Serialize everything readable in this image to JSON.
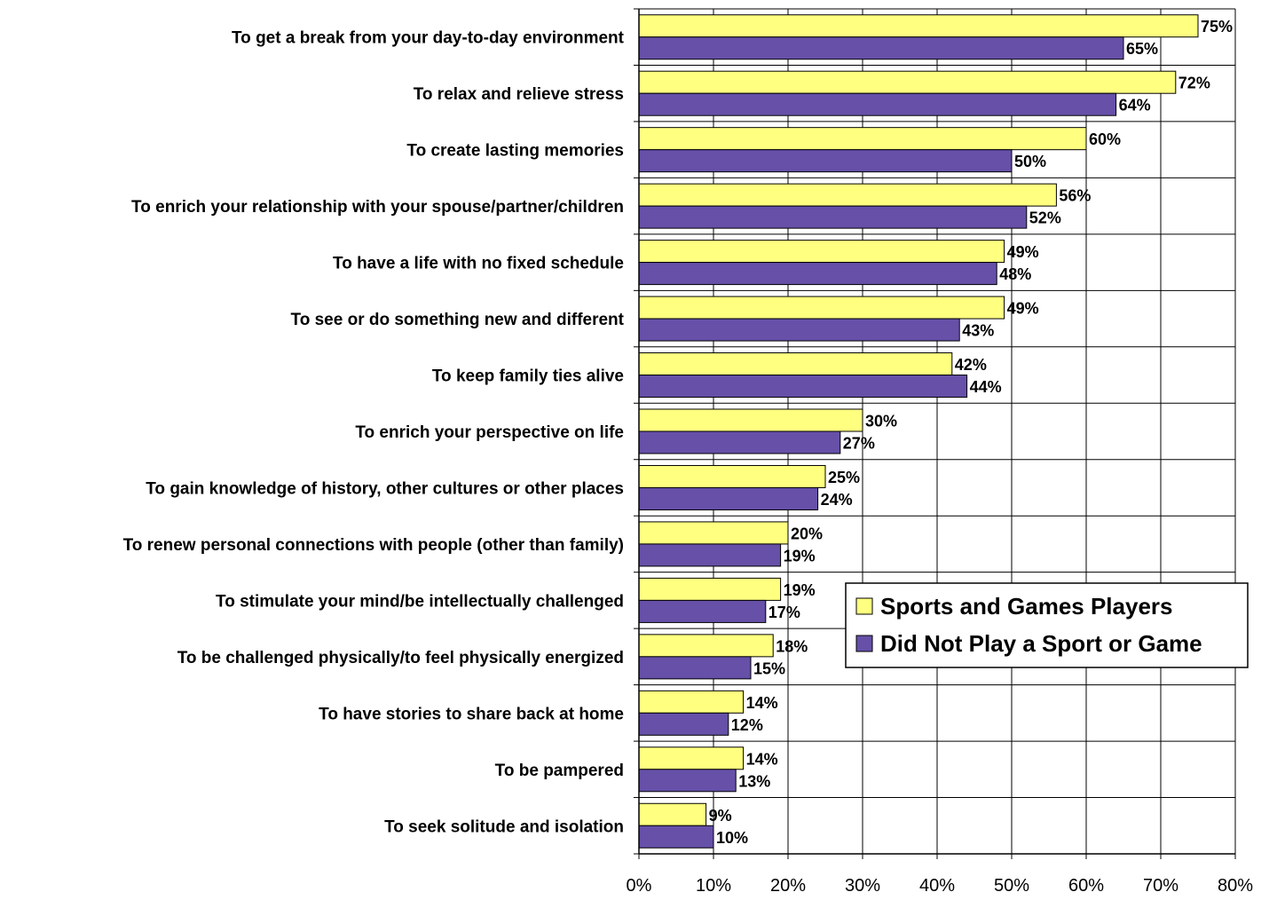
{
  "chart_data": {
    "type": "bar",
    "orientation": "horizontal",
    "title": "",
    "xlabel": "",
    "ylabel": "",
    "xlim": [
      0,
      80
    ],
    "x_tick_step": 10,
    "x_tick_labels": [
      "0%",
      "10%",
      "20%",
      "30%",
      "40%",
      "50%",
      "60%",
      "70%",
      "80%"
    ],
    "grid": true,
    "legend_placement": "center-right",
    "categories": [
      "To get a break from your day-to-day environment",
      "To relax and relieve stress",
      "To create lasting memories",
      "To enrich your relationship with your spouse/partner/children",
      "To have a life with no fixed schedule",
      "To see or do something new and different",
      "To keep family ties alive",
      "To enrich your perspective on life",
      "To gain knowledge of history, other cultures or other places",
      "To renew personal connections with people (other than family)",
      "To stimulate your mind/be intellectually challenged",
      "To be challenged physically/to feel physically energized",
      "To have stories to share back at home",
      "To be pampered",
      "To seek solitude and isolation"
    ],
    "series": [
      {
        "name": "Sports and Games Players",
        "color": "#FFFF80",
        "values": [
          75,
          72,
          60,
          56,
          49,
          49,
          42,
          30,
          25,
          20,
          19,
          18,
          14,
          14,
          9
        ],
        "labels": [
          "75%",
          "72%",
          "60%",
          "56%",
          "49%",
          "49%",
          "42%",
          "30%",
          "25%",
          "20%",
          "19%",
          "18%",
          "14%",
          "14%",
          "9%"
        ]
      },
      {
        "name": "Did Not Play a Sport or Game",
        "color": "#6650A8",
        "values": [
          65,
          64,
          50,
          52,
          48,
          43,
          44,
          27,
          24,
          19,
          17,
          15,
          12,
          13,
          10
        ],
        "labels": [
          "65%",
          "64%",
          "50%",
          "52%",
          "48%",
          "43%",
          "44%",
          "27%",
          "24%",
          "19%",
          "17%",
          "15%",
          "12%",
          "13%",
          "10%"
        ]
      }
    ]
  }
}
